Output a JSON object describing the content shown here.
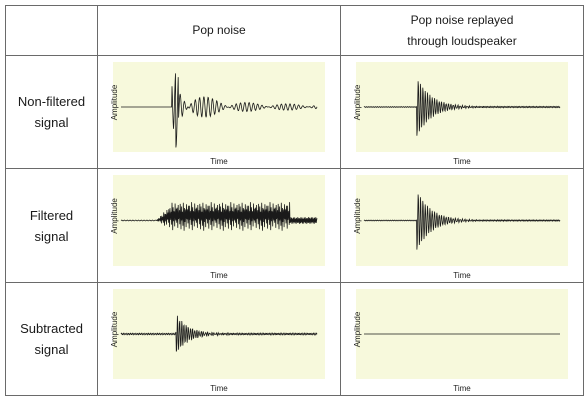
{
  "header": {
    "corner": "",
    "col1": "Pop noise",
    "col2_line1": "Pop noise replayed",
    "col2_line2": "through loudspeaker"
  },
  "rows": [
    {
      "label_line1": "Non-filtered",
      "label_line2": "signal"
    },
    {
      "label_line1": "Filtered",
      "label_line2": "signal"
    },
    {
      "label_line1": "Subtracted",
      "label_line2": "signal"
    }
  ],
  "axis": {
    "ylabel": "Amplitude",
    "xlabel": "Time"
  },
  "colors": {
    "plot_bg": "#f7f9dc",
    "trace": "#1a1a1a",
    "grid": "#6a6a6a"
  },
  "plots": [
    {
      "id": "r0c0",
      "type": "pop_spike",
      "desc_shape": "large spike followed by decaying oscillations"
    },
    {
      "id": "r0c1",
      "type": "burst",
      "desc_shape": "short burst decaying to near-flat line"
    },
    {
      "id": "r1c0",
      "type": "periodic",
      "desc_shape": "repeating saw-like oscillations across time"
    },
    {
      "id": "r1c1",
      "type": "burst",
      "desc_shape": "short burst decaying to near-flat line"
    },
    {
      "id": "r2c0",
      "type": "burst_small",
      "desc_shape": "small burst then flat"
    },
    {
      "id": "r2c1",
      "type": "flat",
      "desc_shape": "flat line"
    }
  ]
}
